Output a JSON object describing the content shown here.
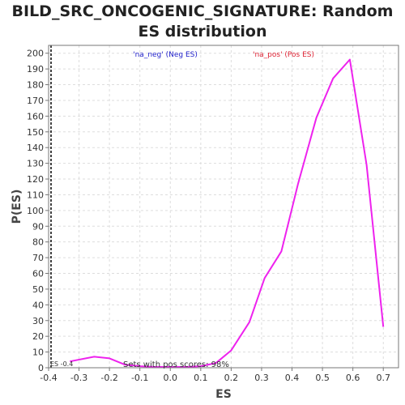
{
  "chart_data": {
    "type": "line",
    "title_line1": "BILD_SRC_ONCOGENIC_SIGNATURE: Random",
    "title_line2": "ES distribution",
    "xlabel": "ES",
    "ylabel": "P(ES)",
    "xlim": [
      -0.4,
      0.75
    ],
    "ylim": [
      0,
      205
    ],
    "xticks": [
      "-0.4",
      "-0.3",
      "-0.2",
      "-0.1",
      "0.0",
      "0.1",
      "0.2",
      "0.3",
      "0.4",
      "0.5",
      "0.6",
      "0.7"
    ],
    "yticks": [
      "0",
      "10",
      "20",
      "30",
      "40",
      "50",
      "60",
      "70",
      "80",
      "90",
      "100",
      "110",
      "120",
      "130",
      "140",
      "150",
      "160",
      "170",
      "180",
      "190",
      "200"
    ],
    "grid": true,
    "legend_neg": "'na_neg' (Neg ES)",
    "legend_pos": "'na_pos' (Pos ES)",
    "annotation_es": "ES -0.4",
    "annotation_sets": "Sets with pos scores: 98%",
    "marker_x": -0.4,
    "series": [
      {
        "color": "#ee22ee",
        "x": [
          -0.33,
          -0.25,
          -0.2,
          -0.15,
          -0.1,
          -0.05,
          0.0,
          0.05,
          0.1,
          0.15,
          0.2,
          0.26,
          0.31,
          0.365,
          0.42,
          0.48,
          0.535,
          0.59,
          0.645,
          0.7
        ],
        "y": [
          4,
          7,
          6,
          2,
          1,
          0.5,
          0.5,
          0.5,
          1,
          3,
          11,
          29,
          57,
          74,
          117,
          159,
          184,
          196,
          129,
          26
        ]
      }
    ],
    "colors": {
      "line": "#ee22ee",
      "neg": "#2222cc",
      "pos": "#dd2233",
      "grid": "#dddddd",
      "axis": "#777777",
      "marker": "#000000"
    }
  }
}
